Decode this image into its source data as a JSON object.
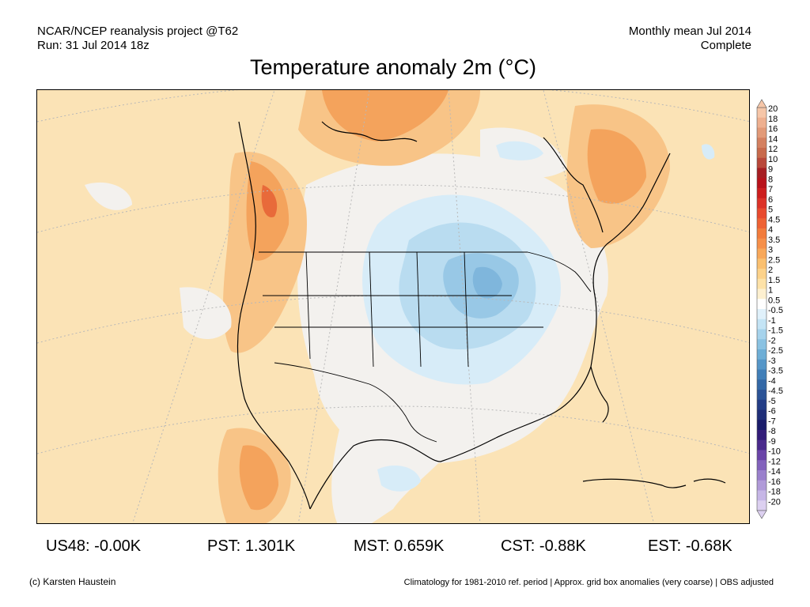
{
  "header": {
    "source_line": "NCAR/NCEP reanalysis project @T62",
    "run_line": "Run: 31 Jul 2014 18z",
    "period_line": "Monthly mean Jul 2014",
    "status_line": "Complete"
  },
  "title": "Temperature anomaly 2m (°C)",
  "colorbar": {
    "labels": [
      "20",
      "18",
      "16",
      "14",
      "12",
      "10",
      "9",
      "8",
      "7",
      "6",
      "5",
      "4.5",
      "4",
      "3.5",
      "3",
      "2.5",
      "2",
      "1.5",
      "1",
      "0.5",
      "-0.5",
      "-1",
      "-1.5",
      "-2",
      "-2.5",
      "-3",
      "-3.5",
      "-4",
      "-4.5",
      "-5",
      "-6",
      "-7",
      "-8",
      "-9",
      "-10",
      "-12",
      "-14",
      "-16",
      "-18",
      "-20"
    ],
    "colors": [
      "#f6c6a8",
      "#eeb090",
      "#e29a78",
      "#d48060",
      "#c86a4c",
      "#b9483a",
      "#a61e22",
      "#b8121a",
      "#cd1e1e",
      "#dc3228",
      "#e84a2e",
      "#ee6234",
      "#f27c3c",
      "#f6904a",
      "#f8a85a",
      "#fac070",
      "#fcd28a",
      "#fde2a8",
      "#fdf0d0",
      "#ffffff",
      "#e0f1fb",
      "#c4e4f5",
      "#a6d3ec",
      "#8ac2e2",
      "#6eaed6",
      "#5596c8",
      "#417fb8",
      "#3468a6",
      "#2b5396",
      "#233d86",
      "#1f2e78",
      "#1a1c6a",
      "#321c78",
      "#4a2a8c",
      "#6a44a8",
      "#8262bc",
      "#9a80cc",
      "#b09ad8",
      "#c6b6e6",
      "#dcd0f0"
    ]
  },
  "stats": [
    {
      "label": "US48:",
      "value": "-0.00K"
    },
    {
      "label": "PST:",
      "value": "1.301K"
    },
    {
      "label": "MST:",
      "value": "0.659K"
    },
    {
      "label": "CST:",
      "value": "-0.88K"
    },
    {
      "label": "EST:",
      "value": "-0.68K"
    }
  ],
  "footer": {
    "credit": "(c) Karsten Haustein",
    "note": "Climatology for 1981-2010 ref. period | Approx. grid box anomalies (very coarse) | OBS adjusted"
  }
}
